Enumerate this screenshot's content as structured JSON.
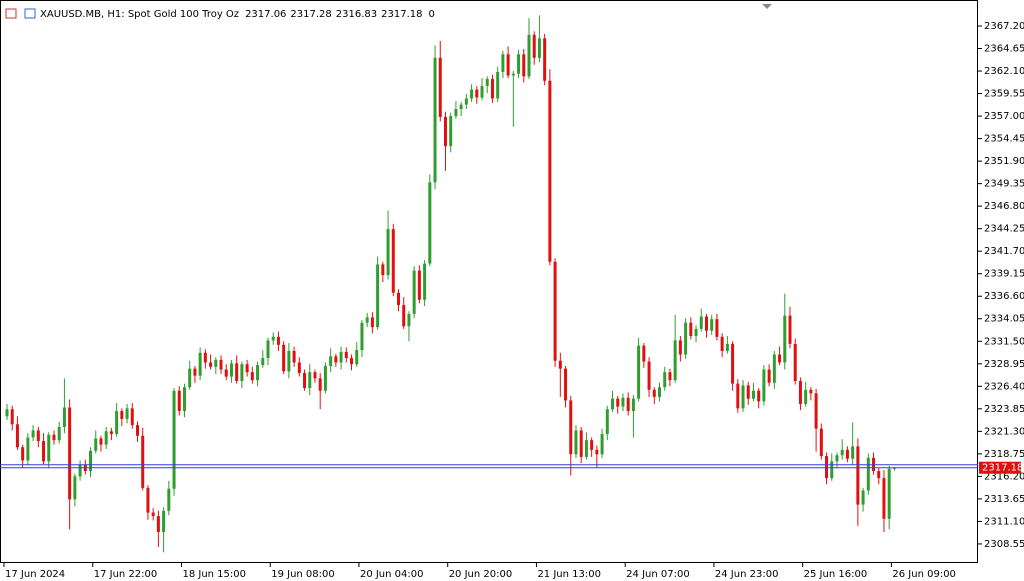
{
  "chart_data": {
    "type": "candlestick",
    "symbol": "XAUUSD.MB, H1:  Spot Gold 100 Troy Oz",
    "header_number": 0,
    "up_color": "#2f9e2f",
    "down_color": "#e01010",
    "price_line_color": "#3c3cd8",
    "ylim": [
      2306.39,
      2369.58
    ],
    "yticks": [
      {
        "value": 2367.2,
        "label": "2367.20"
      },
      2364.65,
      {
        "value": 2362.1,
        "label": "2362.10"
      },
      2359.55,
      {
        "value": 2357,
        "label": "2357.00"
      },
      2354.45,
      {
        "value": 2351.9,
        "label": "2351.90"
      },
      2349.35,
      {
        "value": 2346.8,
        "label": "2346.80"
      },
      2344.25,
      {
        "value": 2341.7,
        "label": "2341.70"
      },
      2339.15,
      {
        "value": 2336.6,
        "label": "2336.60"
      },
      2334.05,
      {
        "value": 2331.5,
        "label": "2331.50"
      },
      2328.95,
      {
        "value": 2326.4,
        "label": "2326.40"
      },
      2323.85,
      {
        "value": 2321.3,
        "label": "2321.30"
      },
      2318.75,
      {
        "value": 2316.2,
        "label": "2316.20"
      },
      2313.65,
      {
        "value": 2311.1,
        "label": "2311.10"
      },
      2308.55
    ],
    "categories": [
      "17 Jun 2024",
      null,
      null,
      null,
      null,
      null,
      null,
      null,
      null,
      null,
      null,
      null,
      null,
      null,
      null,
      null,
      null,
      "17 Jun 22:00",
      null,
      null,
      null,
      null,
      null,
      null,
      null,
      null,
      null,
      null,
      null,
      null,
      null,
      null,
      null,
      null,
      "18 Jun 15:00",
      null,
      null,
      null,
      null,
      null,
      null,
      null,
      null,
      null,
      null,
      null,
      null,
      null,
      null,
      null,
      null,
      "19 Jun 08:00",
      null,
      null,
      null,
      null,
      null,
      null,
      null,
      null,
      null,
      null,
      null,
      null,
      null,
      null,
      null,
      null,
      "20 Jun 04:00",
      null,
      null,
      null,
      null,
      null,
      null,
      null,
      null,
      null,
      null,
      null,
      null,
      null,
      null,
      null,
      null,
      "20 Jun 20:00",
      null,
      null,
      null,
      null,
      null,
      null,
      null,
      null,
      null,
      null,
      null,
      null,
      null,
      null,
      null,
      null,
      "21 Jun 13:00",
      null,
      null,
      null,
      null,
      null,
      null,
      null,
      null,
      null,
      null,
      null,
      null,
      null,
      null,
      null,
      null,
      "24 Jun 07:00",
      null,
      null,
      null,
      null,
      null,
      null,
      null,
      null,
      null,
      null,
      null,
      null,
      null,
      null,
      null,
      null,
      "24 Jun 23:00",
      null,
      null,
      null,
      null,
      null,
      null,
      null,
      null,
      null,
      null,
      null,
      null,
      null,
      null,
      null,
      null,
      "25 Jun 16:00",
      null,
      null,
      null,
      null,
      null,
      null,
      null,
      null,
      null,
      null,
      null,
      null,
      null,
      null,
      null,
      null,
      "26 Jun 09:00"
    ],
    "candles": [
      [
        2323.0,
        2324.4,
        2322.6,
        2323.8
      ],
      [
        2323.8,
        2324.2,
        2321.4,
        2322.1
      ],
      [
        2322.1,
        2323.0,
        2319.2,
        2319.5
      ],
      [
        2319.5,
        2319.8,
        2317.2,
        2318.0
      ],
      [
        2318.0,
        2321.1,
        2317.5,
        2320.6
      ],
      [
        2320.6,
        2322.0,
        2320.2,
        2321.4
      ],
      [
        2321.4,
        2321.8,
        2319.5,
        2320.2
      ],
      [
        2320.2,
        2321.1,
        2317.6,
        2317.9
      ],
      [
        2317.9,
        2321.2,
        2317.1,
        2320.9
      ],
      [
        2320.9,
        2321.4,
        2319.8,
        2320.3
      ],
      [
        2320.3,
        2322.4,
        2319.9,
        2321.8
      ],
      [
        2321.8,
        2327.3,
        2321.1,
        2324.0
      ],
      [
        2324.0,
        2324.9,
        2310.2,
        2313.6
      ],
      [
        2313.6,
        2316.5,
        2312.8,
        2316.2
      ],
      [
        2316.2,
        2318.0,
        2315.7,
        2317.5
      ],
      [
        2317.5,
        2318.1,
        2316.4,
        2316.8
      ],
      [
        2316.8,
        2319.5,
        2316.1,
        2319.1
      ],
      [
        2319.1,
        2321.4,
        2318.8,
        2320.5
      ],
      [
        2320.5,
        2320.8,
        2319.0,
        2319.8
      ],
      [
        2319.8,
        2321.8,
        2319.3,
        2321.3
      ],
      [
        2321.3,
        2321.7,
        2320.3,
        2321.0
      ],
      [
        2321.0,
        2324.5,
        2320.7,
        2323.6
      ],
      [
        2323.6,
        2323.9,
        2321.9,
        2322.7
      ],
      [
        2322.7,
        2324.4,
        2322.2,
        2323.9
      ],
      [
        2323.9,
        2324.5,
        2321.6,
        2322.0
      ],
      [
        2322.0,
        2322.4,
        2320.1,
        2320.8
      ],
      [
        2320.8,
        2321.7,
        2314.6,
        2314.9
      ],
      [
        2314.9,
        2315.2,
        2311.3,
        2312.1
      ],
      [
        2312.1,
        2312.6,
        2311.2,
        2311.7
      ],
      [
        2311.7,
        2312.3,
        2308.2,
        2309.9
      ],
      [
        2309.9,
        2312.7,
        2307.6,
        2312.3
      ],
      [
        2312.3,
        2315.7,
        2311.8,
        2314.8
      ],
      [
        2314.8,
        2326.2,
        2314.0,
        2325.9
      ],
      [
        2325.9,
        2326.4,
        2323.1,
        2323.6
      ],
      [
        2323.6,
        2326.7,
        2322.9,
        2326.3
      ],
      [
        2326.3,
        2329.3,
        2326.0,
        2328.4
      ],
      [
        2328.4,
        2328.7,
        2326.8,
        2327.6
      ],
      [
        2327.6,
        2330.8,
        2327.1,
        2330.2
      ],
      [
        2330.2,
        2330.6,
        2328.4,
        2329.1
      ],
      [
        2329.1,
        2330.0,
        2328.3,
        2328.6
      ],
      [
        2328.6,
        2329.7,
        2327.8,
        2329.4
      ],
      [
        2329.4,
        2329.9,
        2327.8,
        2328.3
      ],
      [
        2328.3,
        2328.9,
        2327.1,
        2327.5
      ],
      [
        2327.5,
        2329.4,
        2326.8,
        2329.0
      ],
      [
        2329.0,
        2329.9,
        2326.7,
        2327.0
      ],
      [
        2327.0,
        2329.2,
        2326.2,
        2328.9
      ],
      [
        2328.9,
        2329.4,
        2327.5,
        2328.0
      ],
      [
        2328.0,
        2328.6,
        2326.7,
        2327.1
      ],
      [
        2327.1,
        2329.2,
        2326.4,
        2328.8
      ],
      [
        2328.8,
        2330.5,
        2328.5,
        2329.6
      ],
      [
        2329.6,
        2331.9,
        2328.8,
        2331.6
      ],
      [
        2331.6,
        2332.5,
        2331.1,
        2332.0
      ],
      [
        2332.0,
        2332.6,
        2330.4,
        2331.1
      ],
      [
        2331.1,
        2331.5,
        2327.8,
        2328.1
      ],
      [
        2328.1,
        2331.3,
        2327.3,
        2330.4
      ],
      [
        2330.4,
        2330.9,
        2328.6,
        2329.1
      ],
      [
        2329.1,
        2329.7,
        2327.5,
        2327.9
      ],
      [
        2327.9,
        2328.3,
        2325.9,
        2326.2
      ],
      [
        2326.2,
        2328.9,
        2325.4,
        2328.0
      ],
      [
        2328.0,
        2328.3,
        2326.8,
        2327.3
      ],
      [
        2327.3,
        2327.9,
        2323.8,
        2325.9
      ],
      [
        2325.9,
        2329.1,
        2325.6,
        2328.7
      ],
      [
        2328.7,
        2330.7,
        2328.0,
        2329.8
      ],
      [
        2329.8,
        2330.1,
        2328.6,
        2329.1
      ],
      [
        2329.1,
        2330.9,
        2328.3,
        2330.3
      ],
      [
        2330.3,
        2330.8,
        2329.1,
        2329.6
      ],
      [
        2329.6,
        2330.0,
        2328.2,
        2328.9
      ],
      [
        2328.9,
        2331.4,
        2328.6,
        2330.5
      ],
      [
        2330.5,
        2333.9,
        2329.7,
        2333.6
      ],
      [
        2333.6,
        2334.7,
        2333.1,
        2334.2
      ],
      [
        2334.2,
        2334.8,
        2332.4,
        2333.1
      ],
      [
        2333.1,
        2341.1,
        2332.8,
        2340.2
      ],
      [
        2340.2,
        2340.5,
        2338.2,
        2339.0
      ],
      [
        2339.0,
        2346.3,
        2338.5,
        2344.2
      ],
      [
        2344.2,
        2344.8,
        2336.6,
        2337.0
      ],
      [
        2337.0,
        2337.4,
        2334.9,
        2335.6
      ],
      [
        2335.6,
        2336.5,
        2332.9,
        2333.2
      ],
      [
        2333.2,
        2334.9,
        2331.5,
        2334.6
      ],
      [
        2334.6,
        2340.0,
        2334.1,
        2339.5
      ],
      [
        2339.5,
        2340.1,
        2335.8,
        2336.2
      ],
      [
        2336.2,
        2340.7,
        2335.5,
        2340.3
      ],
      [
        2340.3,
        2350.4,
        2340.0,
        2349.5
      ],
      [
        2349.5,
        2365.0,
        2348.7,
        2363.6
      ],
      [
        2363.6,
        2365.5,
        2356.4,
        2356.9
      ],
      [
        2356.9,
        2357.5,
        2350.8,
        2353.6
      ],
      [
        2353.6,
        2357.4,
        2352.9,
        2357.0
      ],
      [
        2357.0,
        2358.7,
        2356.7,
        2357.8
      ],
      [
        2357.8,
        2358.6,
        2357.0,
        2358.3
      ],
      [
        2358.3,
        2359.5,
        2357.8,
        2359.0
      ],
      [
        2359.0,
        2360.6,
        2358.6,
        2360.0
      ],
      [
        2360.0,
        2360.4,
        2358.4,
        2359.1
      ],
      [
        2359.1,
        2361.3,
        2358.8,
        2360.4
      ],
      [
        2360.4,
        2361.5,
        2359.6,
        2361.2
      ],
      [
        2361.2,
        2361.7,
        2358.5,
        2359.0
      ],
      [
        2359.0,
        2362.6,
        2358.6,
        2362.0
      ],
      [
        2362.0,
        2364.4,
        2361.3,
        2364.0
      ],
      [
        2364.0,
        2364.9,
        2361.3,
        2361.6
      ],
      [
        2361.6,
        2362.1,
        2355.8,
        2361.8
      ],
      [
        2361.8,
        2364.5,
        2361.3,
        2364.0
      ],
      [
        2364.0,
        2364.6,
        2360.8,
        2361.5
      ],
      [
        2361.5,
        2368.1,
        2361.2,
        2366.2
      ],
      [
        2366.2,
        2366.6,
        2362.8,
        2363.6
      ],
      [
        2363.6,
        2368.4,
        2363.1,
        2365.8
      ],
      [
        2365.8,
        2366.3,
        2360.5,
        2361.0
      ],
      [
        2361.0,
        2362.3,
        2340.1,
        2340.5
      ],
      [
        2340.5,
        2340.9,
        2328.6,
        2329.3
      ],
      [
        2329.3,
        2330.2,
        2325.2,
        2328.4
      ],
      [
        2328.4,
        2328.7,
        2324.0,
        2324.8
      ],
      [
        2324.8,
        2325.3,
        2316.3,
        2318.7
      ],
      [
        2318.7,
        2322.0,
        2318.3,
        2321.4
      ],
      [
        2321.4,
        2321.8,
        2317.7,
        2318.4
      ],
      [
        2318.4,
        2321.2,
        2318.1,
        2320.3
      ],
      [
        2320.3,
        2320.6,
        2318.4,
        2319.2
      ],
      [
        2319.2,
        2319.7,
        2317.2,
        2318.7
      ],
      [
        2318.7,
        2321.6,
        2318.3,
        2321.0
      ],
      [
        2321.0,
        2324.2,
        2320.3,
        2323.8
      ],
      [
        2323.8,
        2325.9,
        2323.5,
        2325.0
      ],
      [
        2325.0,
        2325.3,
        2323.3,
        2324.1
      ],
      [
        2324.1,
        2325.6,
        2323.6,
        2325.1
      ],
      [
        2325.1,
        2325.7,
        2323.1,
        2323.6
      ],
      [
        2323.6,
        2325.4,
        2320.6,
        2325.0
      ],
      [
        2325.0,
        2331.9,
        2324.7,
        2331.0
      ],
      [
        2331.0,
        2331.3,
        2328.5,
        2329.2
      ],
      [
        2329.2,
        2329.7,
        2325.2,
        2326.0
      ],
      [
        2326.0,
        2326.3,
        2324.4,
        2325.2
      ],
      [
        2325.2,
        2326.8,
        2324.7,
        2326.3
      ],
      [
        2326.3,
        2328.6,
        2325.9,
        2328.0
      ],
      [
        2328.0,
        2328.4,
        2326.4,
        2327.1
      ],
      [
        2327.1,
        2334.5,
        2326.8,
        2331.6
      ],
      [
        2331.6,
        2332.1,
        2329.2,
        2330.0
      ],
      [
        2330.0,
        2334.1,
        2329.5,
        2333.6
      ],
      [
        2333.6,
        2334.2,
        2331.7,
        2332.1
      ],
      [
        2332.1,
        2333.3,
        2331.4,
        2332.9
      ],
      [
        2332.9,
        2335.2,
        2332.6,
        2334.3
      ],
      [
        2334.3,
        2334.6,
        2331.9,
        2332.7
      ],
      [
        2332.7,
        2334.5,
        2332.2,
        2334.0
      ],
      [
        2334.0,
        2334.6,
        2331.6,
        2332.0
      ],
      [
        2332.0,
        2332.4,
        2329.7,
        2330.4
      ],
      [
        2330.4,
        2332.1,
        2330.1,
        2331.2
      ],
      [
        2331.2,
        2331.5,
        2325.9,
        2326.7
      ],
      [
        2326.7,
        2327.2,
        2323.4,
        2323.9
      ],
      [
        2323.9,
        2327.1,
        2323.5,
        2326.5
      ],
      [
        2326.5,
        2326.9,
        2324.3,
        2325.0
      ],
      [
        2325.0,
        2326.8,
        2324.7,
        2325.9
      ],
      [
        2325.9,
        2326.2,
        2323.9,
        2324.7
      ],
      [
        2324.7,
        2328.8,
        2324.2,
        2328.3
      ],
      [
        2328.3,
        2328.9,
        2326.4,
        2326.8
      ],
      [
        2326.8,
        2330.4,
        2326.1,
        2330.0
      ],
      [
        2330.0,
        2330.9,
        2328.8,
        2329.1
      ],
      [
        2329.1,
        2336.9,
        2328.3,
        2334.4
      ],
      [
        2334.4,
        2335.4,
        2330.7,
        2331.2
      ],
      [
        2331.2,
        2331.8,
        2326.6,
        2327.0
      ],
      [
        2327.0,
        2327.4,
        2323.7,
        2324.4
      ],
      [
        2324.4,
        2326.9,
        2324.1,
        2326.0
      ],
      [
        2326.0,
        2326.3,
        2324.8,
        2325.6
      ],
      [
        2325.6,
        2326.1,
        2319.0,
        2321.6
      ],
      [
        2321.6,
        2322.2,
        2318.1,
        2318.5
      ],
      [
        2318.5,
        2318.9,
        2315.3,
        2316.0
      ],
      [
        2316.0,
        2318.8,
        2315.7,
        2317.9
      ],
      [
        2317.9,
        2318.9,
        2317.1,
        2318.6
      ],
      [
        2318.6,
        2320.4,
        2318.1,
        2319.2
      ],
      [
        2319.2,
        2319.6,
        2317.8,
        2318.2
      ],
      [
        2318.2,
        2322.3,
        2317.5,
        2319.6
      ],
      [
        2319.6,
        2320.5,
        2310.6,
        2313.0
      ],
      [
        2313.0,
        2314.9,
        2312.2,
        2314.6
      ],
      [
        2314.6,
        2318.8,
        2314.1,
        2318.3
      ],
      [
        2318.3,
        2318.9,
        2316.4,
        2316.8
      ],
      [
        2316.8,
        2317.2,
        2315.3,
        2316.0
      ],
      [
        2316.0,
        2316.9,
        2309.9,
        2311.4
      ],
      [
        2311.4,
        2317.4,
        2310.2,
        2317.06
      ],
      [
        2317.06,
        2317.28,
        2316.83,
        2317.18
      ]
    ]
  }
}
